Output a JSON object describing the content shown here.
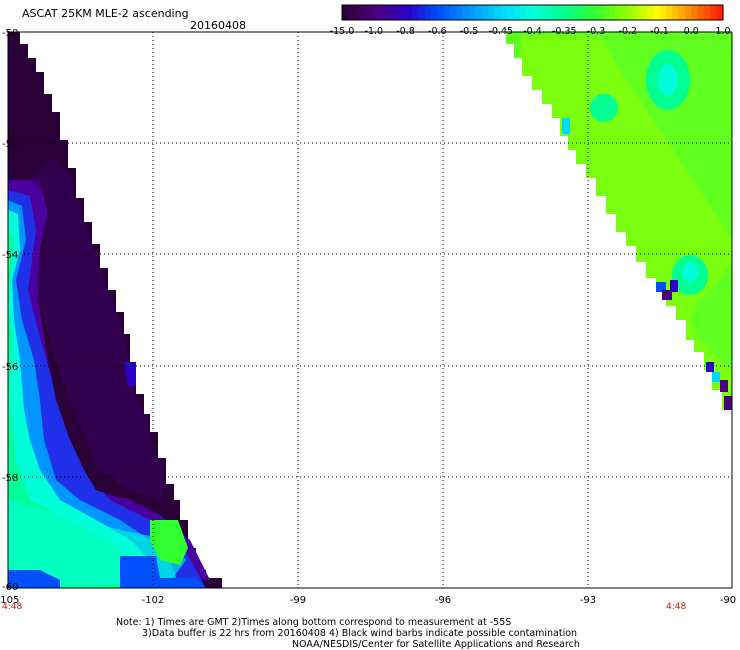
{
  "header": {
    "title": "ASCAT 25KM MLE-2 ascending",
    "date": "20160408"
  },
  "colorbar": {
    "labels": [
      "-15.0",
      "-1.0",
      "-0.8",
      "-0.6",
      "-0.5",
      "-0.45",
      "-0.4",
      "-0.35",
      "-0.3",
      "-0.2",
      "-0.1",
      "0.0",
      "1.0"
    ],
    "colors": [
      "#2a0038",
      "#4b0080",
      "#2a00c8",
      "#0050ff",
      "#0096ff",
      "#00d8ff",
      "#00ffd8",
      "#00ff90",
      "#30ff30",
      "#90ff00",
      "#ffff00",
      "#ff9000",
      "#ff2000"
    ]
  },
  "axes": {
    "x_ticks": [
      "-105",
      "-102",
      "-99",
      "-96",
      "-93",
      "-90"
    ],
    "y_ticks": [
      "-50",
      "-52",
      "-54",
      "-56",
      "-58",
      "-60"
    ]
  },
  "times": {
    "left": "4:48",
    "right": "4:48"
  },
  "notes": {
    "line1": "Note: 1) Times are GMT 2)Times along bottom correspond to measurement at -55S",
    "line2": "3)Data buffer is 22 hrs from 20160408 4) Black wind barbs indicate possible contamination",
    "line3": "NOAA/NESDIS/Center for Satellite Applications and Research"
  }
}
